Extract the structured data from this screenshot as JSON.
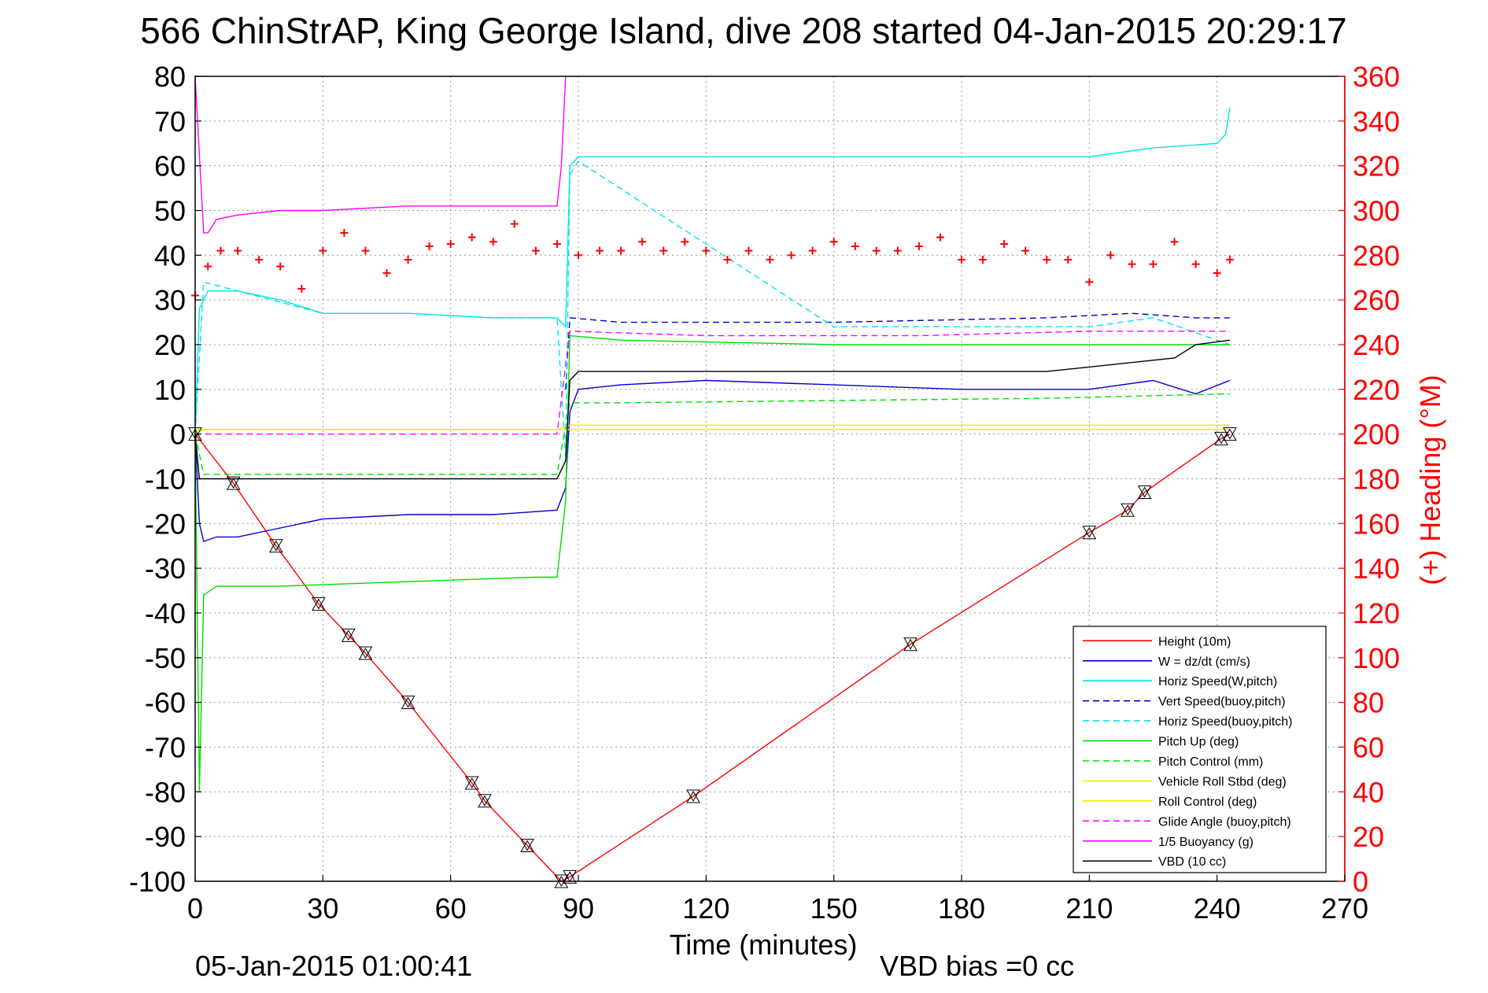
{
  "header": {
    "title": "566 ChinStrAP, King George Island, dive 208 started 04-Jan-2015 20:29:17",
    "timestamp": "05-Jan-2015 01:00:41",
    "vbd_bias": "VBD bias =0 cc"
  },
  "colors": {
    "height": "#ff0000",
    "w": "#0000cc",
    "horiz": "#00e5e5",
    "pitch": "#00dd00",
    "roll": "#eeee00",
    "glide": "#ff00ff",
    "buoy": "#ff00ff",
    "vbd": "#000000",
    "heading": "#ff0000",
    "right_axis": "#ff0000"
  },
  "chart_data": {
    "type": "line",
    "xlabel": "Time (minutes)",
    "ylabel_right": "(+) Heading (°M)",
    "xlim": [
      0,
      270
    ],
    "ylim": [
      -100,
      80
    ],
    "ylim_right": [
      0,
      360
    ],
    "grid": true,
    "legend_position": "bottom-right",
    "xticks": [
      "0",
      "30",
      "60",
      "90",
      "120",
      "150",
      "180",
      "210",
      "240",
      "270"
    ],
    "yticks": [
      "80",
      "70",
      "60",
      "50",
      "40",
      "30",
      "20",
      "10",
      "0",
      "-10",
      "-20",
      "-30",
      "-40",
      "-50",
      "-60",
      "-70",
      "-80",
      "-90",
      "-100"
    ],
    "yticks_right": [
      "360",
      "340",
      "320",
      "300",
      "280",
      "260",
      "240",
      "220",
      "200",
      "180",
      "160",
      "140",
      "120",
      "100",
      "80",
      "60",
      "40",
      "20",
      "0"
    ],
    "series": [
      {
        "name": "Height (10m)",
        "style": "solid",
        "color": "#ff0000",
        "x": [
          0,
          9,
          19,
          29,
          36,
          40,
          50,
          65,
          68,
          78,
          86,
          88,
          117,
          168,
          210,
          219,
          223,
          241,
          243
        ],
        "y": [
          0,
          -11,
          -25,
          -38,
          -45,
          -49,
          -60,
          -78,
          -82,
          -92,
          -100,
          -99,
          -81,
          -47,
          -22,
          -17,
          -13,
          -1,
          0
        ]
      },
      {
        "name": "W = dz/dt (cm/s)",
        "style": "solid",
        "color": "#0000cc",
        "x": [
          0,
          1,
          2,
          5,
          10,
          20,
          30,
          50,
          70,
          85,
          87,
          88,
          90,
          100,
          120,
          150,
          180,
          210,
          225,
          235,
          243
        ],
        "y": [
          0,
          -20,
          -24,
          -23,
          -23,
          -21,
          -19,
          -18,
          -18,
          -17,
          -12,
          5,
          10,
          11,
          12,
          11,
          10,
          10,
          12,
          9,
          12
        ]
      },
      {
        "name": "Horiz Speed(W,pitch)",
        "style": "solid",
        "color": "#00e5e5",
        "x": [
          0,
          1,
          3,
          10,
          20,
          30,
          50,
          70,
          85,
          87,
          88,
          90,
          100,
          120,
          150,
          180,
          210,
          225,
          240,
          242,
          243
        ],
        "y": [
          0,
          28,
          32,
          32,
          30,
          27,
          27,
          26,
          26,
          24,
          60,
          62,
          62,
          62,
          62,
          62,
          62,
          64,
          65,
          67,
          73
        ]
      },
      {
        "name": "Vert Speed(buoy,pitch)",
        "style": "dashed",
        "color": "#0000cc",
        "x": [
          87,
          88,
          100,
          150,
          200,
          220,
          235,
          243
        ],
        "y": [
          10,
          26,
          25,
          25,
          26,
          27,
          26,
          26
        ]
      },
      {
        "name": "Horiz Speed(buoy,pitch)",
        "style": "dashed",
        "color": "#00e5e5",
        "x": [
          0,
          2,
          10,
          30,
          50,
          70,
          85,
          87,
          88,
          90,
          150,
          210,
          225,
          243
        ],
        "y": [
          0,
          34,
          32,
          27,
          27,
          26,
          26,
          -5,
          58,
          61,
          24,
          24,
          26,
          20
        ]
      },
      {
        "name": "Pitch Up (deg)",
        "style": "solid",
        "color": "#00dd00",
        "x": [
          0,
          1,
          2,
          5,
          20,
          50,
          80,
          85,
          87,
          88,
          100,
          150,
          200,
          230,
          243
        ],
        "y": [
          0,
          -80,
          -36,
          -34,
          -34,
          -33,
          -32,
          -32,
          -15,
          22,
          21,
          20,
          20,
          20,
          20
        ]
      },
      {
        "name": "Pitch Control (mm)",
        "style": "dashed",
        "color": "#00dd00",
        "x": [
          0,
          2,
          85,
          88,
          100,
          200,
          243
        ],
        "y": [
          0,
          -9,
          -9,
          7,
          7,
          8,
          9
        ]
      },
      {
        "name": "Vehicle Roll Stbd (deg)",
        "style": "solid",
        "color": "#eeee00",
        "x": [
          0,
          2,
          30,
          50,
          85,
          88,
          120,
          170,
          210,
          240,
          243
        ],
        "y": [
          0,
          1,
          1,
          1,
          1,
          2,
          2,
          2,
          2,
          2,
          2
        ]
      },
      {
        "name": "Roll Control (deg)",
        "style": "solid",
        "color": "#eeee00",
        "x": [
          0,
          243
        ],
        "y": [
          1,
          1
        ]
      },
      {
        "name": "Glide Angle (buoy,pitch)",
        "style": "dashed",
        "color": "#ff00ff",
        "x": [
          0,
          2,
          85,
          88,
          120,
          170,
          210,
          243
        ],
        "y": [
          0,
          0,
          0,
          23,
          22,
          22,
          23,
          23
        ]
      },
      {
        "name": "1/5 Buoyancy (g)",
        "style": "solid",
        "color": "#ff00ff",
        "x": [
          0,
          2,
          3,
          5,
          10,
          20,
          30,
          50,
          70,
          80,
          85,
          86,
          87
        ],
        "y": [
          80,
          45,
          45,
          48,
          49,
          50,
          50,
          51,
          51,
          51,
          51,
          60,
          80
        ]
      },
      {
        "name": "VBD (10 cc)",
        "style": "solid",
        "color": "#000000",
        "x": [
          0,
          1,
          2,
          85,
          87,
          88,
          90,
          120,
          150,
          180,
          200,
          210,
          220,
          230,
          235,
          243
        ],
        "y": [
          0,
          -10,
          -10,
          -10,
          -6,
          12,
          14,
          14,
          14,
          14,
          14,
          15,
          16,
          17,
          20,
          21
        ]
      }
    ],
    "heading_series": {
      "name": "(+) Heading (°M)",
      "style": "marker",
      "color": "#ff0000",
      "x": [
        0,
        3,
        6,
        10,
        15,
        20,
        25,
        30,
        35,
        40,
        45,
        50,
        55,
        60,
        65,
        70,
        75,
        80,
        85,
        90,
        95,
        100,
        105,
        110,
        115,
        120,
        125,
        130,
        135,
        140,
        145,
        150,
        155,
        160,
        165,
        170,
        175,
        180,
        185,
        190,
        195,
        200,
        205,
        210,
        215,
        220,
        225,
        230,
        235,
        240,
        243
      ],
      "y": [
        262,
        275,
        282,
        282,
        278,
        275,
        265,
        282,
        290,
        282,
        272,
        278,
        284,
        285,
        288,
        286,
        294,
        282,
        285,
        280,
        282,
        282,
        286,
        282,
        286,
        282,
        278,
        282,
        278,
        280,
        282,
        286,
        284,
        282,
        282,
        284,
        288,
        278,
        278,
        285,
        282,
        278,
        278,
        268,
        280,
        276,
        276,
        286,
        276,
        272,
        278
      ]
    }
  }
}
